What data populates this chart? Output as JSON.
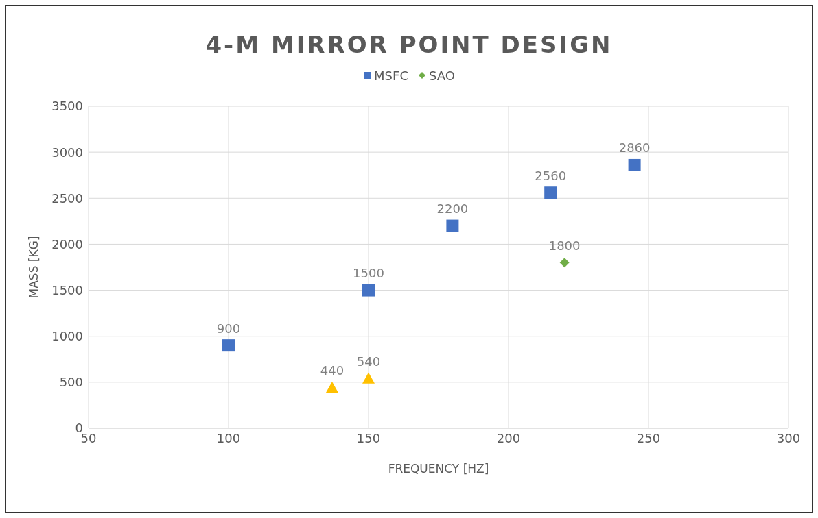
{
  "chart_data": {
    "type": "scatter",
    "title": "4-M MIRROR POINT DESIGN",
    "xlabel": "FREQUENCY [HZ]",
    "ylabel": "MASS [KG]",
    "series": [
      {
        "name": "MSFC",
        "color": "#4472c4",
        "marker": "square",
        "x": [
          100,
          150,
          180,
          215,
          245
        ],
        "values": [
          900,
          1500,
          2200,
          2560,
          2860
        ]
      },
      {
        "color": "#ffc000",
        "marker": "triangle",
        "x": [
          137,
          150
        ],
        "values": [
          440,
          540
        ]
      },
      {
        "name": "SAO",
        "color": "#70ad47",
        "marker": "diamond",
        "x": [
          220
        ],
        "values": [
          1800
        ]
      }
    ],
    "xlim": [
      50,
      300
    ],
    "xticks": [
      50,
      100,
      150,
      200,
      250,
      300
    ],
    "ylim": [
      0,
      3500
    ],
    "yticks": [
      0,
      500,
      1000,
      1500,
      2000,
      2500,
      3000,
      3500
    ],
    "grid": true,
    "legend": "top",
    "data_labels": true
  }
}
